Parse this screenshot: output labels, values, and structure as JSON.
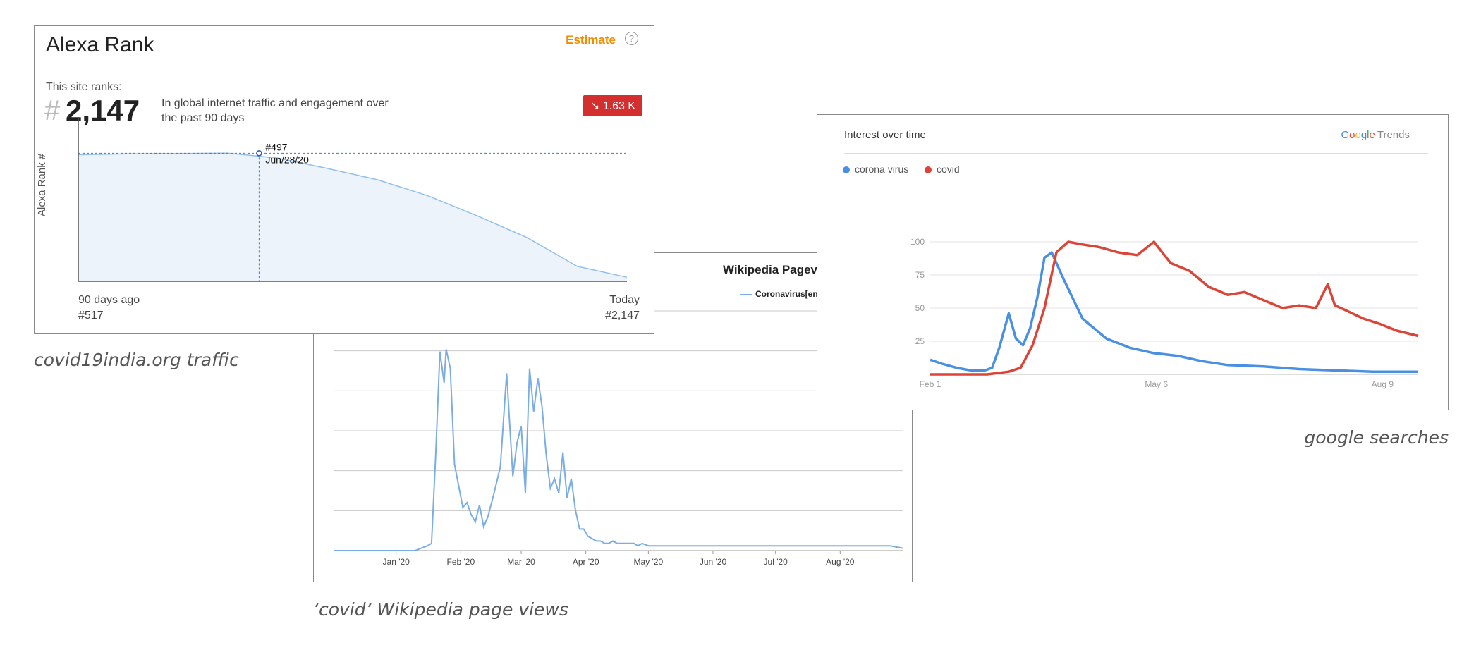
{
  "alexa": {
    "title": "Alexa Rank",
    "estimate_label": "Estimate",
    "help_icon": "question-circle-icon",
    "ranks_label": "This site ranks:",
    "hash": "#",
    "rank": "2,147",
    "description": "In global internet traffic and engagement over the past 90 days",
    "badge": "↘ 1.63 K",
    "badge_color": "#d32f2f",
    "accent_color": "#f28b00",
    "caption": "covid19india.org traffic",
    "chart_data": {
      "type": "area",
      "ylabel": "Alexa Rank #",
      "x_start_label": "90 days ago",
      "x_start_value": "#517",
      "x_end_label": "Today",
      "x_end_value": "#2,147",
      "y_inverted": true,
      "y_range": [
        400,
        2200
      ],
      "x_days": [
        0,
        8,
        16,
        24,
        32,
        40,
        48,
        56,
        64,
        72,
        80,
        88
      ],
      "rank": [
        517,
        505,
        500,
        497,
        560,
        700,
        850,
        1060,
        1330,
        1620,
        2000,
        2147
      ],
      "tooltip": {
        "rank": "#497",
        "date": "Jun/28/20",
        "day": 29
      },
      "line_color": "#90bff0",
      "fill_color": "#edf3fb"
    }
  },
  "wiki": {
    "title": "Wikipedia Pageviews",
    "legend": "Coronavirus[en]",
    "caption": "‘covid’ Wikipedia page views",
    "chart_data": {
      "type": "line",
      "x_ticks": [
        "Jan '20",
        "Feb '20",
        "Mar '20",
        "Apr '20",
        "May '20",
        "Jun '20",
        "Jul '20",
        "Aug '20"
      ],
      "x_start": "2019-12-02",
      "x_end": "2020-08-31",
      "y_range": [
        0,
        100
      ],
      "y_gridlines": 6,
      "series": [
        {
          "name": "Coronavirus[en]",
          "color": "#7aaee3",
          "dates": [
            "2019-12-02",
            "2020-01-10",
            "2020-01-16",
            "2020-01-18",
            "2020-01-20",
            "2020-01-22",
            "2020-01-24",
            "2020-01-25",
            "2020-01-27",
            "2020-01-29",
            "2020-01-31",
            "2020-02-02",
            "2020-02-04",
            "2020-02-06",
            "2020-02-08",
            "2020-02-10",
            "2020-02-12",
            "2020-02-14",
            "2020-02-17",
            "2020-02-20",
            "2020-02-23",
            "2020-02-26",
            "2020-02-28",
            "2020-03-01",
            "2020-03-03",
            "2020-03-05",
            "2020-03-07",
            "2020-03-09",
            "2020-03-11",
            "2020-03-13",
            "2020-03-15",
            "2020-03-17",
            "2020-03-19",
            "2020-03-21",
            "2020-03-23",
            "2020-03-25",
            "2020-03-27",
            "2020-03-29",
            "2020-03-31",
            "2020-04-02",
            "2020-04-04",
            "2020-04-06",
            "2020-04-08",
            "2020-04-10",
            "2020-04-12",
            "2020-04-14",
            "2020-04-16",
            "2020-04-18",
            "2020-04-20",
            "2020-04-22",
            "2020-04-24",
            "2020-04-26",
            "2020-04-28",
            "2020-05-01",
            "2020-05-05",
            "2020-05-10",
            "2020-05-15",
            "2020-05-20",
            "2020-05-28",
            "2020-06-05",
            "2020-06-15",
            "2020-06-25",
            "2020-07-05",
            "2020-07-15",
            "2020-07-25",
            "2020-08-05",
            "2020-08-15",
            "2020-08-25",
            "2020-08-31"
          ],
          "values": [
            0,
            0,
            2,
            3,
            40,
            83,
            70,
            84,
            76,
            36,
            27,
            18,
            20,
            15,
            12,
            19,
            10,
            14,
            24,
            35,
            74,
            31,
            45,
            52,
            24,
            76,
            58,
            72,
            60,
            40,
            26,
            30,
            24,
            41,
            22,
            30,
            17,
            9,
            9,
            6,
            5,
            4,
            4,
            3,
            3,
            4,
            3,
            3,
            3,
            3,
            3,
            2,
            3,
            2,
            2,
            2,
            2,
            2,
            2,
            2,
            2,
            2,
            2,
            2,
            2,
            2,
            2,
            2,
            1
          ]
        }
      ]
    }
  },
  "google": {
    "title": "Interest over time",
    "brand_google": "Google",
    "brand_trends": "Trends",
    "caption": "google searches",
    "chart_data": {
      "type": "line",
      "x_ticks": [
        "Feb 1",
        "May 6",
        "Aug 9"
      ],
      "x_start": "2020-02-01",
      "x_end": "2020-08-24",
      "y_ticks": [
        25,
        50,
        75,
        100
      ],
      "y_range": [
        0,
        100
      ],
      "series": [
        {
          "name": "corona virus",
          "color": "#4a90e2",
          "dates": [
            "2020-02-01",
            "2020-02-06",
            "2020-02-12",
            "2020-02-18",
            "2020-02-24",
            "2020-02-27",
            "2020-03-01",
            "2020-03-05",
            "2020-03-08",
            "2020-03-11",
            "2020-03-14",
            "2020-03-17",
            "2020-03-20",
            "2020-03-23",
            "2020-03-28",
            "2020-04-05",
            "2020-04-15",
            "2020-04-25",
            "2020-05-05",
            "2020-05-15",
            "2020-05-25",
            "2020-06-05",
            "2020-06-20",
            "2020-07-05",
            "2020-07-20",
            "2020-08-05",
            "2020-08-24"
          ],
          "values": [
            11,
            8,
            5,
            3,
            3,
            5,
            20,
            46,
            27,
            22,
            35,
            58,
            88,
            92,
            72,
            42,
            27,
            20,
            16,
            14,
            10,
            7,
            6,
            4,
            3,
            2,
            2
          ]
        },
        {
          "name": "covid",
          "color": "#db4437",
          "dates": [
            "2020-02-01",
            "2020-02-25",
            "2020-03-05",
            "2020-03-10",
            "2020-03-15",
            "2020-03-20",
            "2020-03-25",
            "2020-03-30",
            "2020-04-05",
            "2020-04-12",
            "2020-04-20",
            "2020-04-28",
            "2020-05-05",
            "2020-05-12",
            "2020-05-20",
            "2020-05-28",
            "2020-06-05",
            "2020-06-12",
            "2020-06-20",
            "2020-06-28",
            "2020-07-05",
            "2020-07-12",
            "2020-07-17",
            "2020-07-20",
            "2020-07-25",
            "2020-08-01",
            "2020-08-08",
            "2020-08-15",
            "2020-08-24"
          ],
          "values": [
            0,
            0,
            2,
            5,
            22,
            50,
            92,
            100,
            98,
            96,
            92,
            90,
            100,
            84,
            78,
            66,
            60,
            62,
            56,
            50,
            52,
            50,
            68,
            52,
            48,
            42,
            38,
            33,
            29
          ]
        }
      ]
    }
  }
}
